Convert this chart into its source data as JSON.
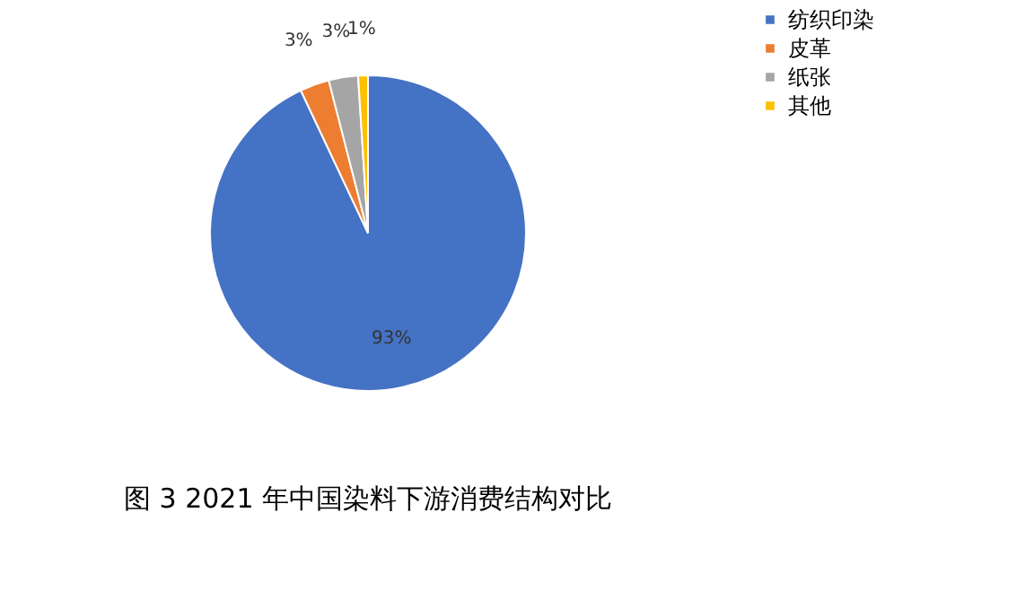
{
  "chart_data": {
    "type": "pie",
    "title": "图 3  2021 年中国染料下游消费结构对比",
    "categories": [
      "纺织印染",
      "皮革",
      "纸张",
      "其他"
    ],
    "values": [
      93,
      3,
      3,
      1
    ],
    "colors": [
      "#4472c4",
      "#ed7d31",
      "#a5a5a5",
      "#ffc000"
    ],
    "value_labels": [
      "93%",
      "3%",
      "3%",
      "1%"
    ],
    "legend": "right"
  }
}
